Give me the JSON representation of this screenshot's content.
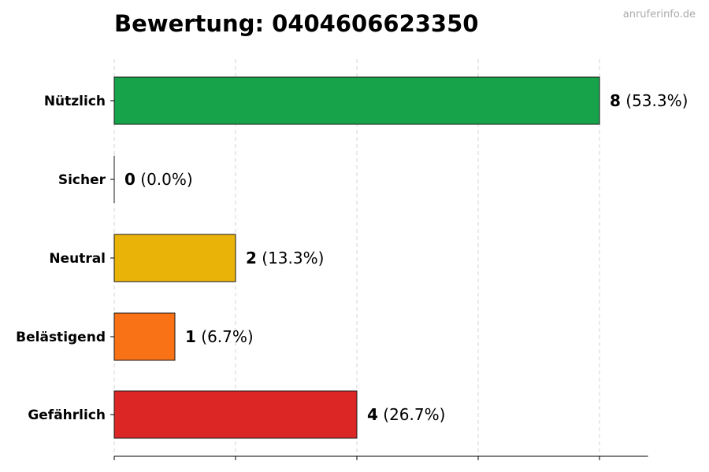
{
  "chart_data": {
    "type": "bar",
    "orientation": "horizontal",
    "title": "Bewertung: 0404606623350",
    "watermark": "anruferinfo.de",
    "xlabel": "",
    "ylabel": "",
    "xlim": [
      0,
      8.8
    ],
    "grid": "vertical dashed",
    "categories": [
      "Nützlich",
      "Sicher",
      "Neutral",
      "Belästigend",
      "Gefährlich"
    ],
    "values": [
      8,
      0,
      2,
      1,
      4
    ],
    "value_labels": [
      "8",
      "0",
      "2",
      "1",
      "4"
    ],
    "percent_labels": [
      "(53.3%)",
      "(0.0%)",
      "(13.3%)",
      "(6.7%)",
      "(26.7%)"
    ],
    "colors": [
      "#16a34a",
      "#16a34a",
      "#eab308",
      "#f97316",
      "#dc2626"
    ]
  }
}
